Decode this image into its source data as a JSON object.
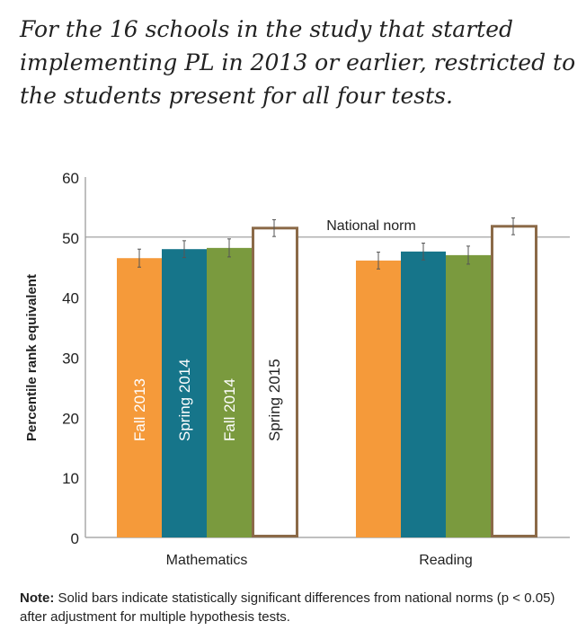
{
  "title": "For the 16 schools in the study that started implementing PL in 2013 or earlier, restricted to the students present for all four tests.",
  "note": {
    "label": "Note:",
    "text": " Solid bars indicate statistically significant differences from national norms (p < 0.05) after adjustment for multiple hypothesis tests."
  },
  "chart_data": {
    "type": "bar",
    "ylabel": "Percentile rank equivalent",
    "ylim": [
      0,
      60
    ],
    "yticks": [
      "0",
      "10",
      "20",
      "30",
      "40",
      "50",
      "60"
    ],
    "categories": [
      "Mathematics",
      "Reading"
    ],
    "reference_line": {
      "value": 50,
      "label": "National norm"
    },
    "series": [
      {
        "name": "Fall 2013",
        "color": "#f59a3a",
        "fill": true,
        "values": [
          46.5,
          46.1
        ],
        "error": [
          1.5,
          1.4
        ]
      },
      {
        "name": "Spring 2014",
        "color": "#16758a",
        "fill": true,
        "values": [
          48.0,
          47.6
        ],
        "error": [
          1.4,
          1.4
        ]
      },
      {
        "name": "Fall 2014",
        "color": "#7a9a3e",
        "fill": true,
        "values": [
          48.2,
          47.0
        ],
        "error": [
          1.5,
          1.5
        ]
      },
      {
        "name": "Spring 2015",
        "color": "#8b6a48",
        "fill": false,
        "values": [
          51.5,
          51.8
        ],
        "error": [
          1.4,
          1.4
        ]
      }
    ],
    "grid": false,
    "legend": "labels inside Mathematics bars"
  }
}
